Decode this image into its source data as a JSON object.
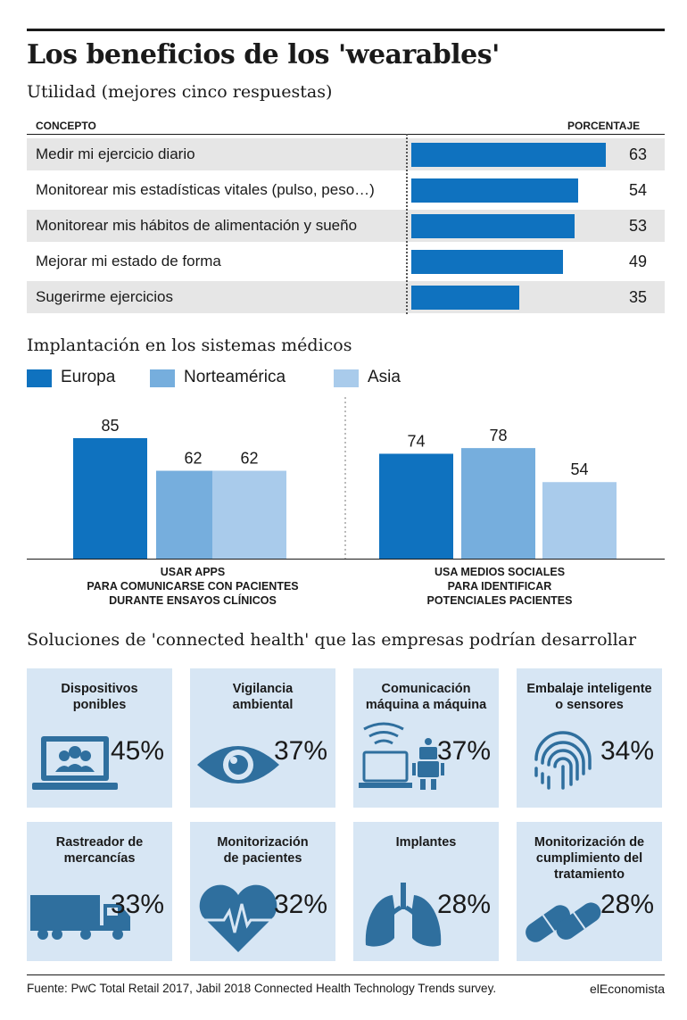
{
  "title": "Los beneficios de los 'wearables'",
  "section1": {
    "subtitle": "Utilidad (mejores cinco respuestas)",
    "col_concept": "CONCEPTO",
    "col_percent": "PORCENTAJE"
  },
  "section2": {
    "title": "Implantación en los sistemas médicos"
  },
  "section3": {
    "title": "Soluciones de 'connected health' que las empresas podrían desarrollar",
    "tiles": [
      {
        "name": "Dispositivos\nponibles",
        "percent": "45%",
        "icon": "laptop-users-icon"
      },
      {
        "name": "Vigilancia\nambiental",
        "percent": "37%",
        "icon": "eye-icon"
      },
      {
        "name": "Comunicación\nmáquina a máquina",
        "percent": "37%",
        "icon": "laptop-robot-icon"
      },
      {
        "name": "Embalaje inteligente\no sensores",
        "percent": "34%",
        "icon": "fingerprint-icon"
      },
      {
        "name": "Rastreador de\nmercancías",
        "percent": "33%",
        "icon": "truck-icon"
      },
      {
        "name": "Monitorización\nde pacientes",
        "percent": "32%",
        "icon": "heart-pulse-icon"
      },
      {
        "name": "Implantes",
        "percent": "28%",
        "icon": "lungs-icon"
      },
      {
        "name": "Monitorización de\ncumplimiento del\ntratamiento",
        "percent": "28%",
        "icon": "pills-icon"
      }
    ]
  },
  "footer": {
    "source": "Fuente: PwC Total Retail 2017, Jabil 2018 Connected Health Technology Trends survey.",
    "brand": "elEconomista"
  },
  "colors": {
    "bar_blue": "#0f72bf",
    "europa": "#0f72bf",
    "norteamerica": "#76aedd",
    "asia": "#a9cbeb",
    "tile_bg": "#d7e6f4",
    "icon": "#2f6f9e"
  },
  "chart_data": [
    {
      "type": "bar",
      "orientation": "horizontal",
      "title": "Utilidad (mejores cinco respuestas)",
      "xlabel": "PORCENTAJE",
      "ylabel": "CONCEPTO",
      "categories": [
        "Medir mi ejercicio diario",
        "Monitorear mis estadísticas vitales (pulso, peso…)",
        "Monitorear mis hábitos de alimentación y sueño",
        "Mejorar mi estado de forma",
        "Sugerirme ejercicios"
      ],
      "values": [
        63,
        54,
        53,
        49,
        35
      ],
      "xlim": [
        0,
        63
      ]
    },
    {
      "type": "bar",
      "title": "Implantación en los sistemas médicos",
      "categories": [
        "USAR APPS\nPARA COMUNICARSE CON PACIENTES\nDURANTE ENSAYOS CLÍNICOS",
        "USA MEDIOS SOCIALES\nPARA IDENTIFICAR\nPOTENCIALES PACIENTES"
      ],
      "series": [
        {
          "name": "Europa",
          "values": [
            85,
            74
          ],
          "color": "#0f72bf"
        },
        {
          "name": "Norteamérica",
          "values": [
            62,
            78
          ],
          "color": "#76aedd"
        },
        {
          "name": "Asia",
          "values": [
            62,
            54
          ],
          "color": "#a9cbeb"
        }
      ],
      "ylim": [
        0,
        85
      ],
      "legend": "top-left"
    }
  ]
}
